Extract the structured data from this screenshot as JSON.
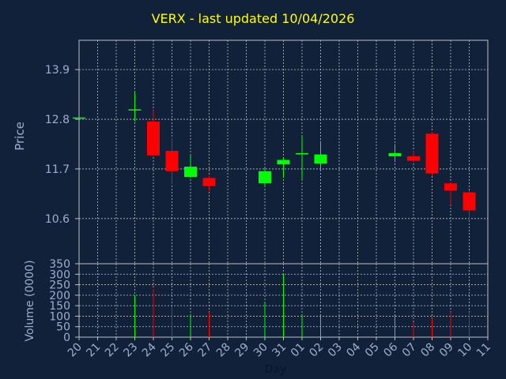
{
  "colors": {
    "background": "#11213a",
    "text": "#9ab0d0",
    "title": "#ffff00",
    "grid": "#c0c0c0",
    "up": "#00ff00",
    "down": "#ff0000"
  },
  "chart_data": {
    "type": "candlestick",
    "title": "VERX - last updated 10/04/2026",
    "xlabel": "Day",
    "ylabel": "Price",
    "ylabel_volume": "Volume (0000)",
    "grid": true,
    "price_ylim": [
      9.6,
      14.55
    ],
    "price_ticks": [
      "13.9",
      "12.8",
      "11.7",
      "10.6"
    ],
    "volume_ylim": [
      0,
      350
    ],
    "volume_ticks": [
      "350",
      "300",
      "250",
      "200",
      "150",
      "100",
      "50",
      "0"
    ],
    "x_ticks": [
      "20",
      "21",
      "22",
      "23",
      "24",
      "25",
      "26",
      "27",
      "28",
      "29",
      "30",
      "31",
      "01",
      "02",
      "03",
      "04",
      "05",
      "06",
      "07",
      "08",
      "09",
      "10",
      "11"
    ],
    "candles": [
      {
        "day": "20",
        "open": 12.82,
        "high": 12.85,
        "low": 12.81,
        "close": 12.84,
        "volume": 0
      },
      {
        "day": "23",
        "open": 13.02,
        "high": 13.4,
        "low": 12.75,
        "close": 13.02,
        "volume": 200
      },
      {
        "day": "24",
        "open": 12.75,
        "high": 13.0,
        "low": 11.98,
        "close": 12.0,
        "volume": 230
      },
      {
        "day": "25",
        "open": 12.1,
        "high": 12.38,
        "low": 11.36,
        "close": 11.65,
        "volume": 148
      },
      {
        "day": "26",
        "open": 11.52,
        "high": 12.0,
        "low": 11.5,
        "close": 11.75,
        "volume": 110
      },
      {
        "day": "27",
        "open": 11.5,
        "high": 11.55,
        "low": 11.22,
        "close": 11.32,
        "volume": 120
      },
      {
        "day": "30",
        "open": 11.38,
        "high": 11.72,
        "low": 11.3,
        "close": 11.65,
        "volume": 170
      },
      {
        "day": "31",
        "open": 11.8,
        "high": 11.95,
        "low": 11.5,
        "close": 11.9,
        "volume": 300
      },
      {
        "day": "01",
        "open": 12.05,
        "high": 12.45,
        "low": 11.45,
        "close": 12.05,
        "volume": 110
      },
      {
        "day": "02",
        "open": 11.82,
        "high": 12.32,
        "low": 11.65,
        "close": 12.02,
        "volume": 100
      },
      {
        "day": "06",
        "open": 11.98,
        "high": 12.25,
        "low": 11.85,
        "close": 12.05,
        "volume": 100
      },
      {
        "day": "07",
        "open": 11.98,
        "high": 12.1,
        "low": 11.85,
        "close": 11.88,
        "volume": 70
      },
      {
        "day": "08",
        "open": 12.48,
        "high": 12.52,
        "low": 11.55,
        "close": 11.6,
        "volume": 90
      },
      {
        "day": "09",
        "open": 11.38,
        "high": 11.4,
        "low": 10.9,
        "close": 11.22,
        "volume": 120
      },
      {
        "day": "10",
        "open": 11.18,
        "high": 11.22,
        "low": 10.55,
        "close": 10.78,
        "volume": 120
      }
    ]
  }
}
